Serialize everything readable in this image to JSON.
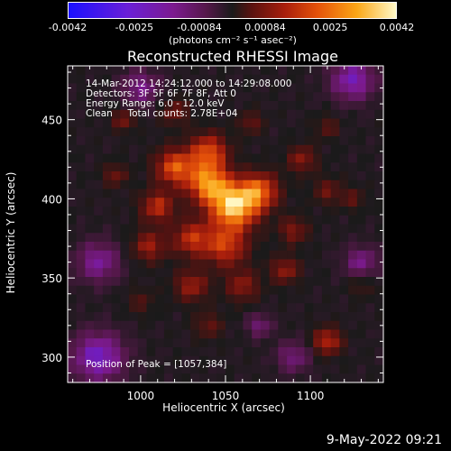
{
  "colorbar": {
    "ticks": [
      "-0.0042",
      "-0.0025",
      "-0.00084",
      "0.00084",
      "0.0025",
      "0.0042"
    ],
    "tick_values": [
      -0.0042,
      -0.0025,
      -0.00084,
      0.00084,
      0.0025,
      0.0042
    ],
    "range": [
      -0.0042,
      0.0042
    ],
    "units": "(photons cm⁻² s⁻¹ asec⁻²)",
    "colormap_stops": [
      "#1a10ff",
      "#6a1fd8",
      "#7c1a8f",
      "#55184a",
      "#1a1a1a",
      "#5a1210",
      "#a81e0c",
      "#e5520a",
      "#fba616",
      "#fff9c8"
    ]
  },
  "info": {
    "time_range": "14-Mar-2012 14:24:12.000 to 14:29:08.000",
    "detectors": "Detectors: 3F 5F 6F 7F 8F, Att 0",
    "energy": "Energy Range: 6.0 - 12.0 keV",
    "method": "Clean     Total counts: 2.78E+04",
    "peak": "Position of Peak = [1057,384]"
  },
  "footer": {
    "date": "9-May-2022 09:21"
  },
  "chart_data": {
    "type": "heatmap",
    "title": "Reconstructed RHESSI Image",
    "xlabel": "Heliocentric X (arcsec)",
    "ylabel": "Heliocentric Y (arcsec)",
    "xlim": [
      957,
      1143
    ],
    "ylim": [
      284,
      484
    ],
    "xticks": [
      1000,
      1050,
      1100
    ],
    "yticks": [
      300,
      350,
      400,
      450
    ],
    "peak": [
      1057,
      384
    ],
    "grid": false,
    "blobs": [
      {
        "x": 1055,
        "y": 395,
        "amp": 0.0042,
        "sigma": 10
      },
      {
        "x": 1040,
        "y": 410,
        "amp": 0.0034,
        "sigma": 9
      },
      {
        "x": 1020,
        "y": 420,
        "amp": 0.0028,
        "sigma": 8
      },
      {
        "x": 1040,
        "y": 430,
        "amp": 0.0026,
        "sigma": 8
      },
      {
        "x": 1070,
        "y": 405,
        "amp": 0.0028,
        "sigma": 8
      },
      {
        "x": 1050,
        "y": 370,
        "amp": 0.0024,
        "sigma": 9
      },
      {
        "x": 1010,
        "y": 395,
        "amp": 0.0022,
        "sigma": 7
      },
      {
        "x": 1030,
        "y": 375,
        "amp": 0.0022,
        "sigma": 8
      },
      {
        "x": 1005,
        "y": 370,
        "amp": 0.0018,
        "sigma": 7
      },
      {
        "x": 1030,
        "y": 345,
        "amp": 0.0018,
        "sigma": 7
      },
      {
        "x": 1060,
        "y": 345,
        "amp": 0.0016,
        "sigma": 7
      },
      {
        "x": 1085,
        "y": 355,
        "amp": 0.0017,
        "sigma": 6
      },
      {
        "x": 1090,
        "y": 380,
        "amp": 0.0015,
        "sigma": 6
      },
      {
        "x": 1095,
        "y": 425,
        "amp": 0.0016,
        "sigma": 6
      },
      {
        "x": 1110,
        "y": 405,
        "amp": 0.0012,
        "sigma": 6
      },
      {
        "x": 1125,
        "y": 400,
        "amp": 0.001,
        "sigma": 5
      },
      {
        "x": 985,
        "y": 415,
        "amp": 0.0013,
        "sigma": 5
      },
      {
        "x": 990,
        "y": 450,
        "amp": 0.0014,
        "sigma": 5
      },
      {
        "x": 1020,
        "y": 455,
        "amp": 0.0013,
        "sigma": 6
      },
      {
        "x": 1065,
        "y": 448,
        "amp": 0.0012,
        "sigma": 5
      },
      {
        "x": 1110,
        "y": 445,
        "amp": 0.001,
        "sigma": 5
      },
      {
        "x": 1110,
        "y": 310,
        "amp": 0.0022,
        "sigma": 6
      },
      {
        "x": 1040,
        "y": 320,
        "amp": 0.0011,
        "sigma": 6
      },
      {
        "x": 1000,
        "y": 335,
        "amp": 0.0008,
        "sigma": 6
      },
      {
        "x": 1130,
        "y": 345,
        "amp": 0.0008,
        "sigma": 5
      },
      {
        "x": 1070,
        "y": 320,
        "amp": -0.0014,
        "sigma": 5
      },
      {
        "x": 975,
        "y": 360,
        "amp": -0.0018,
        "sigma": 9
      },
      {
        "x": 975,
        "y": 300,
        "amp": -0.0024,
        "sigma": 11
      },
      {
        "x": 1125,
        "y": 475,
        "amp": -0.0022,
        "sigma": 9
      },
      {
        "x": 1130,
        "y": 360,
        "amp": -0.0016,
        "sigma": 7
      },
      {
        "x": 1000,
        "y": 470,
        "amp": -0.0016,
        "sigma": 8
      },
      {
        "x": 1090,
        "y": 300,
        "amp": -0.0014,
        "sigma": 7
      }
    ]
  }
}
